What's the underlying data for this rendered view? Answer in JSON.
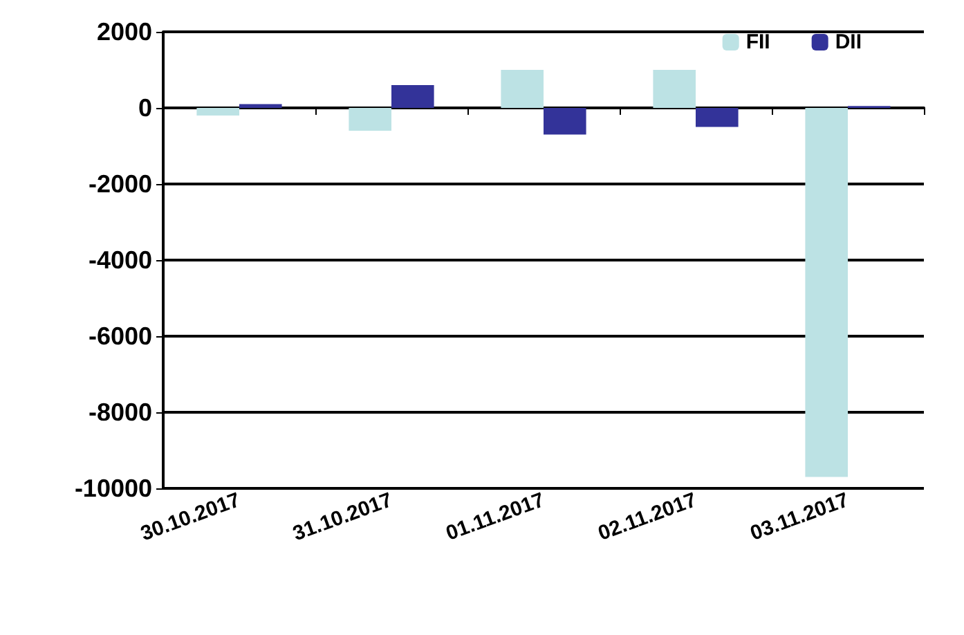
{
  "chart_data": {
    "type": "bar",
    "categories": [
      "30.10.2017",
      "31.10.2017",
      "01.11.2017",
      "02.11.2017",
      "03.11.2017"
    ],
    "series": [
      {
        "name": "FII",
        "color": "#bce2e4",
        "values": [
          -200,
          -600,
          1000,
          1000,
          -9700
        ]
      },
      {
        "name": "DII",
        "color": "#333399",
        "values": [
          100,
          600,
          -700,
          -500,
          50
        ]
      }
    ],
    "ylim": [
      -10000,
      2000
    ],
    "yticks": [
      -10000,
      -8000,
      -6000,
      -4000,
      -2000,
      0,
      2000
    ],
    "grid": "y",
    "legend": "top right"
  }
}
